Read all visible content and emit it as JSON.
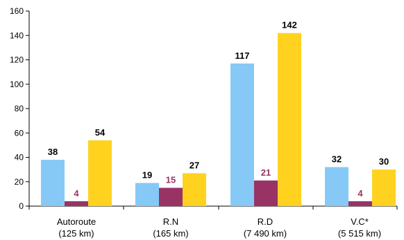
{
  "chart_data": {
    "type": "bar",
    "categories": [
      {
        "line1": "Autoroute",
        "line2": "(125 km)"
      },
      {
        "line1": "R.N",
        "line2": "(165 km)"
      },
      {
        "line1": "R.D",
        "line2": "(7 490 km)"
      },
      {
        "line1": "V.C*",
        "line2": "(5 515 km)"
      }
    ],
    "series": [
      {
        "values": [
          38,
          19,
          117,
          32
        ],
        "color": "#86c9f6",
        "label_color": "#000000"
      },
      {
        "values": [
          4,
          15,
          21,
          4
        ],
        "color": "#993366",
        "label_color": "#993366"
      },
      {
        "values": [
          54,
          27,
          142,
          30
        ],
        "color": "#ffd21f",
        "label_color": "#000000"
      }
    ],
    "ylim": [
      0,
      160
    ],
    "yticks": [
      "0",
      "20",
      "40",
      "60",
      "80",
      "100",
      "120",
      "140",
      "160"
    ],
    "grid": false,
    "legend": "none"
  }
}
